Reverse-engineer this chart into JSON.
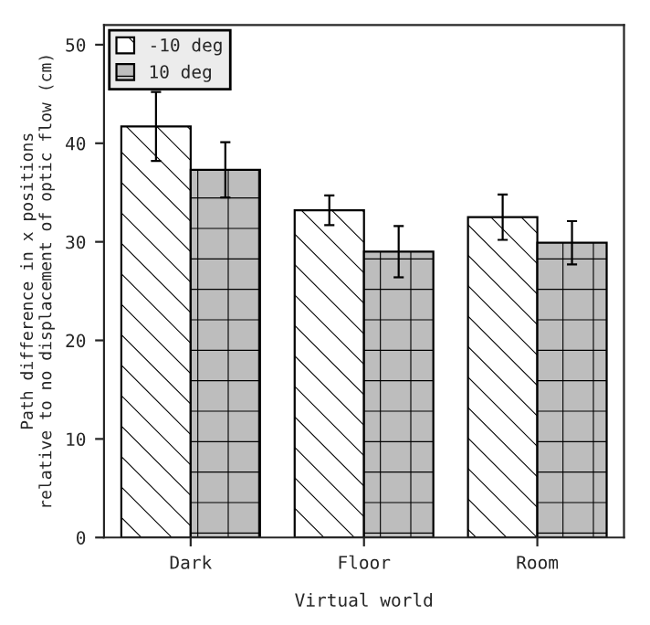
{
  "chart_data": {
    "type": "bar",
    "xlabel": "Virtual world",
    "ylabel": "Path difference in x positions\nrelative to no displacement of optic flow (cm)",
    "categories": [
      "Dark",
      "Floor",
      "Room"
    ],
    "series": [
      {
        "name": "-10 deg",
        "color": "#ffffff",
        "values": [
          41.7,
          33.2,
          32.5
        ],
        "errors": [
          3.5,
          1.5,
          2.3
        ]
      },
      {
        "name": "10 deg",
        "color": "#bdbdbd",
        "values": [
          37.3,
          29.0,
          29.9
        ],
        "errors": [
          2.8,
          2.6,
          2.2
        ]
      }
    ],
    "ylim": [
      0,
      52
    ],
    "yticks": [
      0,
      10,
      20,
      30,
      40,
      50
    ],
    "grid": false,
    "legend": "top left"
  }
}
